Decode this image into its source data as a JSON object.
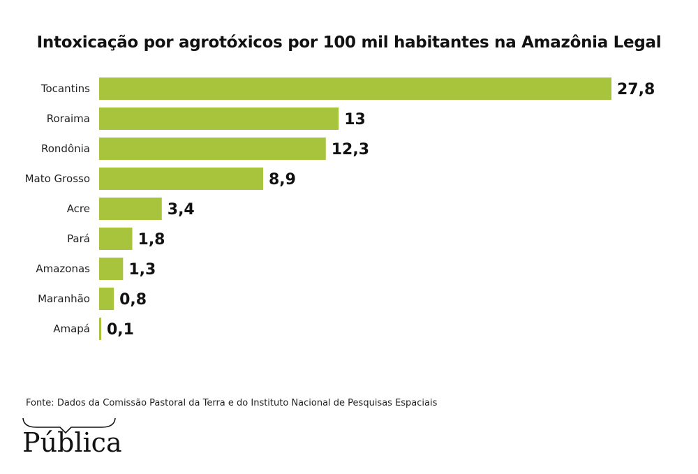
{
  "chart_data": {
    "type": "bar",
    "orientation": "horizontal",
    "title": "Intoxicação por agrotóxicos por 100 mil habitantes na Amazônia Legal",
    "categories": [
      "Tocantins",
      "Roraima",
      "Rondônia",
      "Mato Grosso",
      "Acre",
      "Pará",
      "Amazonas",
      "Maranhão",
      "Amapá"
    ],
    "values": [
      27.8,
      13,
      12.3,
      8.9,
      3.4,
      1.8,
      1.3,
      0.8,
      0.1
    ],
    "value_labels": [
      "27,8",
      "13",
      "12,3",
      "8,9",
      "3,4",
      "1,8",
      "1,3",
      "0,8",
      "0,1"
    ],
    "xlim": [
      0,
      27.8
    ],
    "grid": false,
    "legend": "none",
    "bar_color": "#a8c43c"
  },
  "source": "Fonte: Dados da Comissão Pastoral da Terra e do Instituto Nacional de Pesquisas Espaciais",
  "logo": {
    "text": "Pública"
  }
}
